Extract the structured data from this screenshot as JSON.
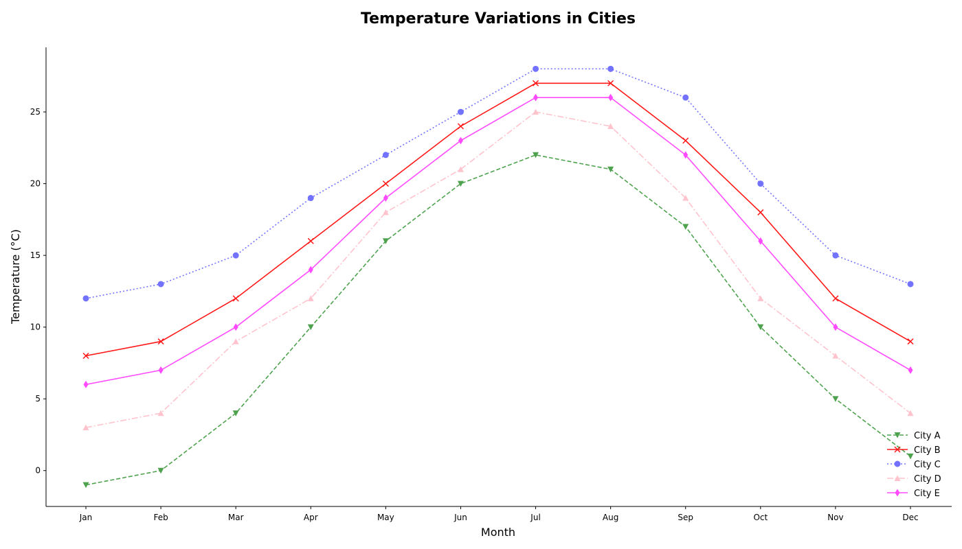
{
  "chart_data": {
    "type": "line",
    "title": "Temperature Variations in Cities",
    "xlabel": "Month",
    "ylabel": "Temperature (°C)",
    "categories": [
      "Jan",
      "Feb",
      "Mar",
      "Apr",
      "May",
      "Jun",
      "Jul",
      "Aug",
      "Sep",
      "Oct",
      "Nov",
      "Dec"
    ],
    "ylim": [
      -2.5,
      29.5
    ],
    "yticks": [
      0,
      5,
      10,
      15,
      20,
      25
    ],
    "grid": false,
    "legend_position": "bottom-right",
    "series": [
      {
        "name": "City A",
        "color": "#228b22",
        "line": "dashed",
        "marker": "triangle-down",
        "values": [
          -1,
          0,
          4,
          10,
          16,
          20,
          22,
          21,
          17,
          10,
          5,
          1
        ]
      },
      {
        "name": "City B",
        "color": "#ff0000",
        "line": "solid",
        "marker": "x",
        "values": [
          8,
          9,
          12,
          16,
          20,
          24,
          27,
          27,
          23,
          18,
          12,
          9
        ]
      },
      {
        "name": "City C",
        "color": "#0000ff",
        "line": "dotted",
        "marker": "circle",
        "values": [
          12,
          13,
          15,
          19,
          22,
          25,
          28,
          28,
          26,
          20,
          15,
          13
        ]
      },
      {
        "name": "City D",
        "color": "#ffc0cb",
        "line": "dashdot",
        "marker": "triangle-up",
        "values": [
          3,
          4,
          9,
          12,
          18,
          21,
          25,
          24,
          19,
          12,
          8,
          4
        ]
      },
      {
        "name": "City E",
        "color": "#ff00ff",
        "line": "solid",
        "marker": "thin-diamond",
        "values": [
          6,
          7,
          10,
          14,
          19,
          23,
          26,
          26,
          22,
          16,
          10,
          7
        ]
      }
    ]
  }
}
